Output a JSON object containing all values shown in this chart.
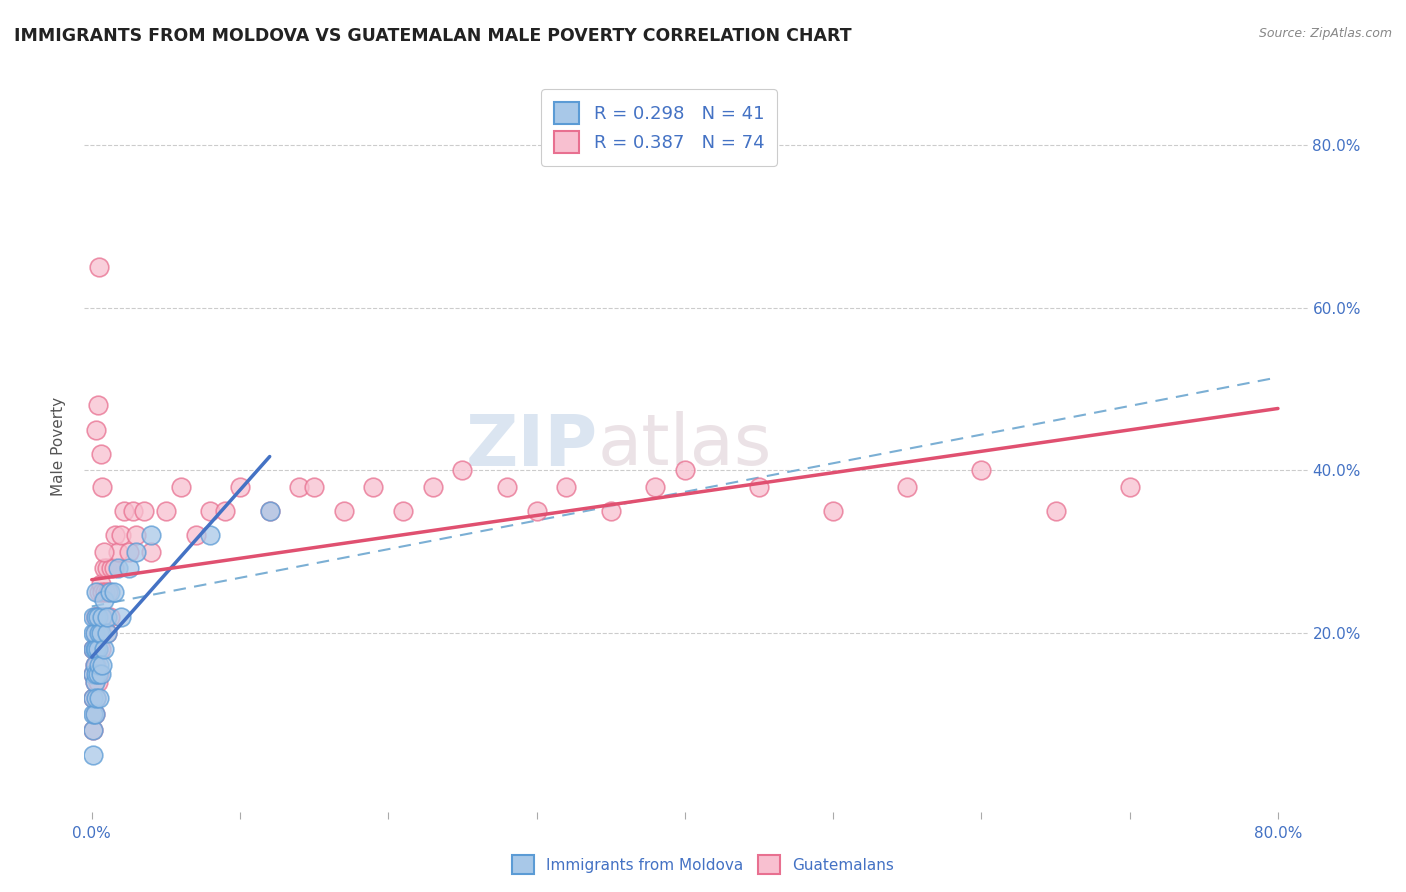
{
  "title": "IMMIGRANTS FROM MOLDOVA VS GUATEMALAN MALE POVERTY CORRELATION CHART",
  "source": "Source: ZipAtlas.com",
  "ylabel": "Male Poverty",
  "xlim": [
    -0.005,
    0.82
  ],
  "ylim": [
    -0.02,
    0.88
  ],
  "ytick_vals": [
    0.2,
    0.4,
    0.6,
    0.8
  ],
  "ytick_labels": [
    "20.0%",
    "40.0%",
    "60.0%",
    "80.0%"
  ],
  "xtick_vals": [
    0.0,
    0.1,
    0.2,
    0.3,
    0.4,
    0.5,
    0.6,
    0.7,
    0.8
  ],
  "xtick_labels": [
    "0.0%",
    "",
    "",
    "",
    "",
    "",
    "",
    "",
    "80.0%"
  ],
  "legend_line1": "R = 0.298   N = 41",
  "legend_line2": "R = 0.387   N = 74",
  "watermark_zip": "ZIP",
  "watermark_atlas": "atlas",
  "color_moldova_fill": "#A8C8E8",
  "color_moldova_edge": "#5B9BD5",
  "color_moldova_line": "#4472C4",
  "color_guat_fill": "#F8C0D0",
  "color_guat_edge": "#E87090",
  "color_guat_line": "#E05070",
  "color_dashed": "#7BAFD4",
  "color_grid": "#CCCCCC",
  "axis_label_color": "#4472C4",
  "title_color": "#222222",
  "bg_color": "#FFFFFF",
  "moldova_x": [
    0.001,
    0.001,
    0.001,
    0.001,
    0.001,
    0.001,
    0.001,
    0.001,
    0.002,
    0.002,
    0.002,
    0.002,
    0.002,
    0.003,
    0.003,
    0.003,
    0.003,
    0.003,
    0.004,
    0.004,
    0.004,
    0.005,
    0.005,
    0.005,
    0.006,
    0.006,
    0.007,
    0.007,
    0.008,
    0.008,
    0.01,
    0.01,
    0.012,
    0.015,
    0.018,
    0.02,
    0.025,
    0.03,
    0.04,
    0.08,
    0.12
  ],
  "moldova_y": [
    0.05,
    0.08,
    0.1,
    0.12,
    0.15,
    0.18,
    0.2,
    0.22,
    0.1,
    0.14,
    0.16,
    0.18,
    0.2,
    0.12,
    0.15,
    0.18,
    0.22,
    0.25,
    0.15,
    0.18,
    0.22,
    0.12,
    0.16,
    0.2,
    0.15,
    0.2,
    0.16,
    0.22,
    0.18,
    0.24,
    0.2,
    0.22,
    0.25,
    0.25,
    0.28,
    0.22,
    0.28,
    0.3,
    0.32,
    0.32,
    0.35
  ],
  "guat_x": [
    0.001,
    0.001,
    0.001,
    0.001,
    0.002,
    0.002,
    0.002,
    0.002,
    0.002,
    0.003,
    0.003,
    0.003,
    0.003,
    0.004,
    0.004,
    0.004,
    0.005,
    0.005,
    0.005,
    0.006,
    0.006,
    0.006,
    0.007,
    0.007,
    0.008,
    0.008,
    0.009,
    0.01,
    0.01,
    0.011,
    0.012,
    0.013,
    0.015,
    0.016,
    0.018,
    0.02,
    0.022,
    0.025,
    0.028,
    0.03,
    0.035,
    0.04,
    0.05,
    0.06,
    0.07,
    0.08,
    0.09,
    0.1,
    0.12,
    0.14,
    0.15,
    0.17,
    0.19,
    0.21,
    0.23,
    0.25,
    0.28,
    0.3,
    0.32,
    0.35,
    0.38,
    0.4,
    0.45,
    0.5,
    0.55,
    0.6,
    0.65,
    0.7,
    0.003,
    0.004,
    0.005,
    0.006,
    0.007,
    0.008
  ],
  "guat_y": [
    0.08,
    0.12,
    0.15,
    0.18,
    0.1,
    0.14,
    0.16,
    0.2,
    0.22,
    0.12,
    0.16,
    0.18,
    0.22,
    0.14,
    0.18,
    0.22,
    0.15,
    0.2,
    0.25,
    0.18,
    0.22,
    0.26,
    0.2,
    0.25,
    0.22,
    0.28,
    0.25,
    0.2,
    0.28,
    0.25,
    0.22,
    0.28,
    0.28,
    0.32,
    0.3,
    0.32,
    0.35,
    0.3,
    0.35,
    0.32,
    0.35,
    0.3,
    0.35,
    0.38,
    0.32,
    0.35,
    0.35,
    0.38,
    0.35,
    0.38,
    0.38,
    0.35,
    0.38,
    0.35,
    0.38,
    0.4,
    0.38,
    0.35,
    0.38,
    0.35,
    0.38,
    0.4,
    0.38,
    0.35,
    0.38,
    0.4,
    0.35,
    0.38,
    0.45,
    0.48,
    0.65,
    0.42,
    0.38,
    0.3
  ]
}
